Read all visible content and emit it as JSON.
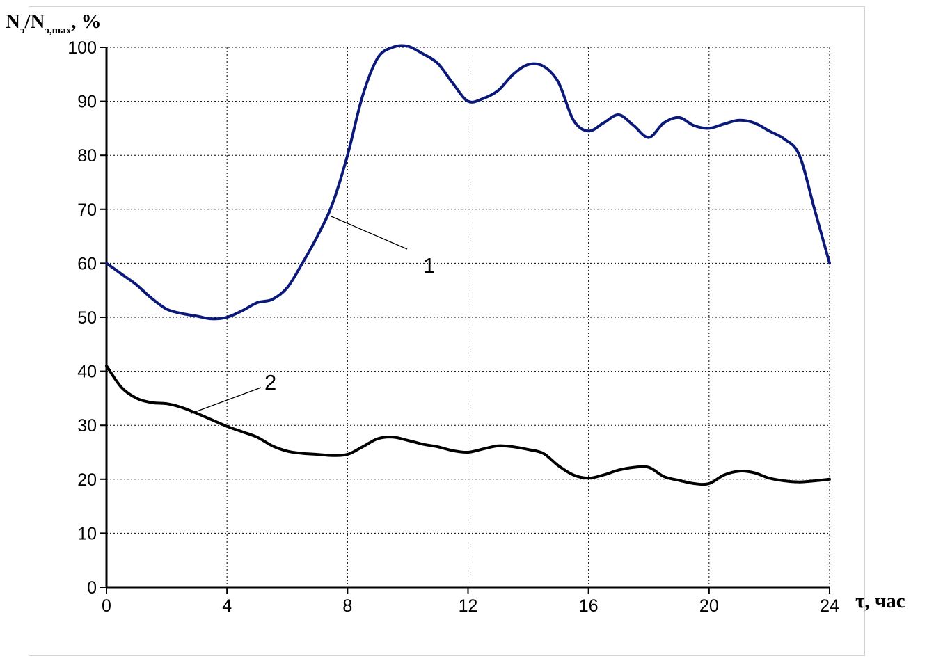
{
  "chart_data": {
    "type": "line",
    "y_title": {
      "main_a": "N",
      "sub_a": "э",
      "main_b": "/N",
      "sub_b": "э,max",
      "main_c": ", %"
    },
    "x_title": "τ, час",
    "xlim": [
      0,
      24
    ],
    "ylim": [
      0,
      100
    ],
    "x_ticks": [
      "0",
      "4",
      "8",
      "12",
      "16",
      "20",
      "24"
    ],
    "y_ticks": [
      "0",
      "10",
      "20",
      "30",
      "40",
      "50",
      "60",
      "70",
      "80",
      "90",
      "100"
    ],
    "grid": true,
    "series": [
      {
        "name": "1",
        "color": "#0b1a7a",
        "points": [
          [
            0,
            60
          ],
          [
            0.5,
            58
          ],
          [
            1,
            56
          ],
          [
            1.5,
            53.5
          ],
          [
            2,
            51.5
          ],
          [
            2.5,
            50.7
          ],
          [
            3,
            50.2
          ],
          [
            3.5,
            49.7
          ],
          [
            4,
            50
          ],
          [
            4.5,
            51.2
          ],
          [
            5,
            52.7
          ],
          [
            5.5,
            53.3
          ],
          [
            6,
            55.5
          ],
          [
            6.5,
            60
          ],
          [
            7,
            65
          ],
          [
            7.5,
            71
          ],
          [
            8,
            80
          ],
          [
            8.5,
            91
          ],
          [
            9,
            98
          ],
          [
            9.5,
            100
          ],
          [
            10,
            100.2
          ],
          [
            10.5,
            98.8
          ],
          [
            11,
            97
          ],
          [
            11.5,
            93.3
          ],
          [
            12,
            90
          ],
          [
            12.5,
            90.5
          ],
          [
            13,
            92
          ],
          [
            13.5,
            95
          ],
          [
            14,
            96.8
          ],
          [
            14.5,
            96.5
          ],
          [
            15,
            93.5
          ],
          [
            15.5,
            86.5
          ],
          [
            16,
            84.5
          ],
          [
            16.5,
            86
          ],
          [
            17,
            87.5
          ],
          [
            17.5,
            85.5
          ],
          [
            18,
            83.3
          ],
          [
            18.5,
            86
          ],
          [
            19,
            87
          ],
          [
            19.5,
            85.5
          ],
          [
            20,
            85
          ],
          [
            20.5,
            85.8
          ],
          [
            21,
            86.5
          ],
          [
            21.5,
            86
          ],
          [
            22,
            84.5
          ],
          [
            22.5,
            83
          ],
          [
            23,
            80
          ],
          [
            23.5,
            70
          ],
          [
            24,
            60
          ]
        ]
      },
      {
        "name": "2",
        "color": "#000000",
        "points": [
          [
            0,
            41
          ],
          [
            0.5,
            37
          ],
          [
            1,
            35
          ],
          [
            1.5,
            34.2
          ],
          [
            2,
            34
          ],
          [
            2.5,
            33.3
          ],
          [
            3,
            32.2
          ],
          [
            3.5,
            31
          ],
          [
            4,
            29.8
          ],
          [
            4.5,
            28.8
          ],
          [
            5,
            27.8
          ],
          [
            5.5,
            26.2
          ],
          [
            6,
            25.2
          ],
          [
            6.5,
            24.8
          ],
          [
            7,
            24.6
          ],
          [
            7.5,
            24.4
          ],
          [
            8,
            24.6
          ],
          [
            8.5,
            26
          ],
          [
            9,
            27.5
          ],
          [
            9.5,
            27.8
          ],
          [
            10,
            27.2
          ],
          [
            10.5,
            26.5
          ],
          [
            11,
            26
          ],
          [
            11.5,
            25.3
          ],
          [
            12,
            25
          ],
          [
            12.5,
            25.6
          ],
          [
            13,
            26.2
          ],
          [
            13.5,
            26
          ],
          [
            14,
            25.5
          ],
          [
            14.5,
            24.8
          ],
          [
            15,
            22.5
          ],
          [
            15.5,
            20.8
          ],
          [
            16,
            20.2
          ],
          [
            16.5,
            20.8
          ],
          [
            17,
            21.7
          ],
          [
            17.5,
            22.2
          ],
          [
            18,
            22.2
          ],
          [
            18.5,
            20.5
          ],
          [
            19,
            19.8
          ],
          [
            19.5,
            19.2
          ],
          [
            20,
            19.2
          ],
          [
            20.5,
            20.8
          ],
          [
            21,
            21.5
          ],
          [
            21.5,
            21.2
          ],
          [
            22,
            20.2
          ],
          [
            22.5,
            19.7
          ],
          [
            23,
            19.5
          ],
          [
            23.5,
            19.7
          ],
          [
            24,
            20
          ]
        ]
      }
    ],
    "annotations": [
      {
        "label": "1",
        "series": "1"
      },
      {
        "label": "2",
        "series": "2"
      }
    ]
  }
}
